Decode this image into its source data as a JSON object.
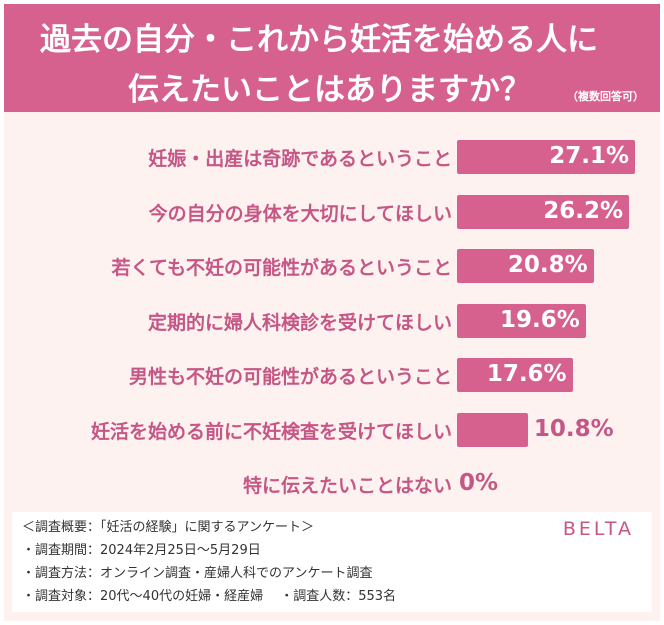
{
  "header": {
    "title_line1": "過去の自分・これから妊活を始める人に",
    "title_line2": "伝えたいことはありますか？",
    "note": "（複数回答可）"
  },
  "chart_data": {
    "type": "bar",
    "orientation": "horizontal",
    "xlim": [
      0,
      27.1
    ],
    "grid": false,
    "categories": [
      "妊娠・出産は奇跡であるということ",
      "今の自分の身体を大切にしてほしい",
      "若くても不妊の可能性があるということ",
      "定期的に婦人科検診を受けてほしい",
      "男性も不妊の可能性があるということ",
      "妊活を始める前に不妊検査を受けてほしい",
      "特に伝えたいことはない"
    ],
    "values": [
      27.1,
      26.2,
      20.8,
      19.6,
      17.6,
      10.8,
      0
    ],
    "value_labels": [
      "27.1%",
      "26.2%",
      "20.8%",
      "19.6%",
      "17.6%",
      "10.8%",
      "0%"
    ],
    "colors": {
      "bar": "#d6618f",
      "label": "#c55786"
    }
  },
  "survey": {
    "title": "＜調査概要：「妊活の経験」に関するアンケート＞",
    "period": "・調査期間：2024年2月25日〜5月29日",
    "method": "・調査方法：オンライン調査・産婦人科でのアンケート調査",
    "target": "・調査対象：20代〜40代の妊婦・経産婦　 ・調査人数：553名",
    "logo": "BELTA"
  }
}
